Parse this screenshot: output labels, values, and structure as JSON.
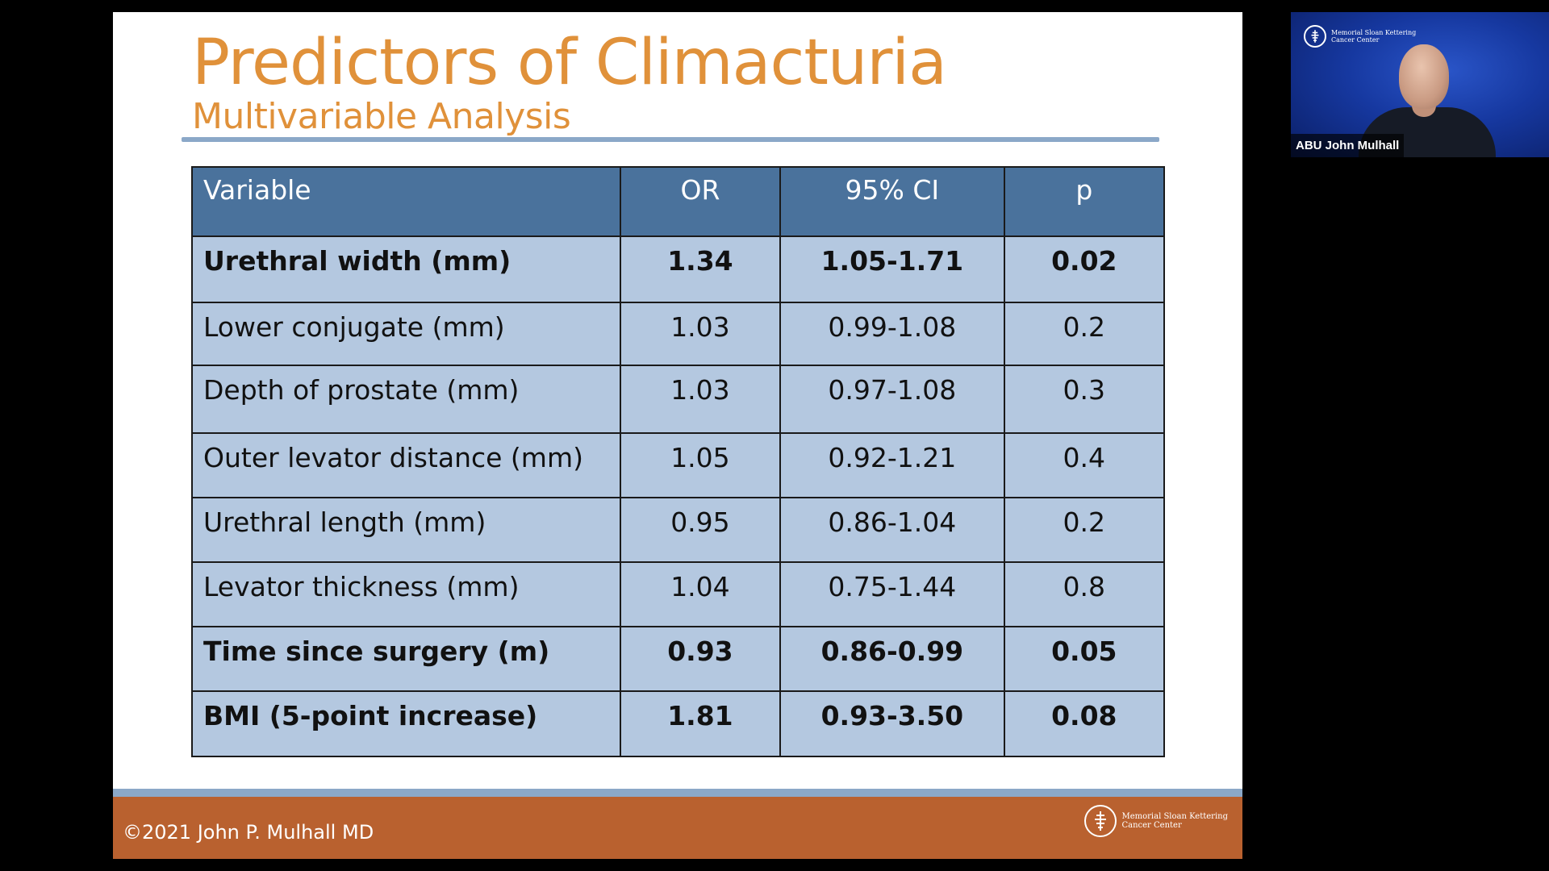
{
  "slide": {
    "title": "Predictors of Climacturia",
    "subtitle": "Multivariable Analysis",
    "table": {
      "headers": [
        "Variable",
        "OR",
        "95% CI",
        "p"
      ],
      "rows": [
        {
          "variable": "Urethral width (mm)",
          "or": "1.34",
          "ci": "1.05-1.71",
          "p": "0.02",
          "bold": true
        },
        {
          "variable": "Lower conjugate (mm)",
          "or": "1.03",
          "ci": "0.99-1.08",
          "p": "0.2",
          "bold": false
        },
        {
          "variable": "Depth of prostate (mm)",
          "or": "1.03",
          "ci": "0.97-1.08",
          "p": "0.3",
          "bold": false
        },
        {
          "variable": "Outer levator distance (mm)",
          "or": "1.05",
          "ci": "0.92-1.21",
          "p": "0.4",
          "bold": false
        },
        {
          "variable": "Urethral length (mm)",
          "or": "0.95",
          "ci": "0.86-1.04",
          "p": "0.2",
          "bold": false
        },
        {
          "variable": "Levator thickness (mm)",
          "or": "1.04",
          "ci": "0.75-1.44",
          "p": "0.8",
          "bold": false
        },
        {
          "variable": "Time since surgery (m)",
          "or": "0.93",
          "ci": "0.86-0.99",
          "p": "0.05",
          "bold": true
        },
        {
          "variable": "BMI (5-point increase)",
          "or": "1.81",
          "ci": "0.93-3.50",
          "p": "0.08",
          "bold": true
        }
      ]
    },
    "footer": {
      "copyright": "©2021 John P. Mulhall MD",
      "logo_line1": "Memorial Sloan Kettering",
      "logo_line2": "Cancer Center"
    }
  },
  "video_tile": {
    "participant_name": "ABU John Mulhall",
    "logo_line1": "Memorial Sloan Kettering",
    "logo_line2": "Cancer Center"
  },
  "colors": {
    "title": "#e0913a",
    "header_fill": "#4a729c",
    "cell_fill": "#b4c8e0",
    "footer_fill": "#b9612f",
    "rule": "#8ba8c8"
  },
  "icons": {
    "logo": "msk-logo-icon"
  }
}
